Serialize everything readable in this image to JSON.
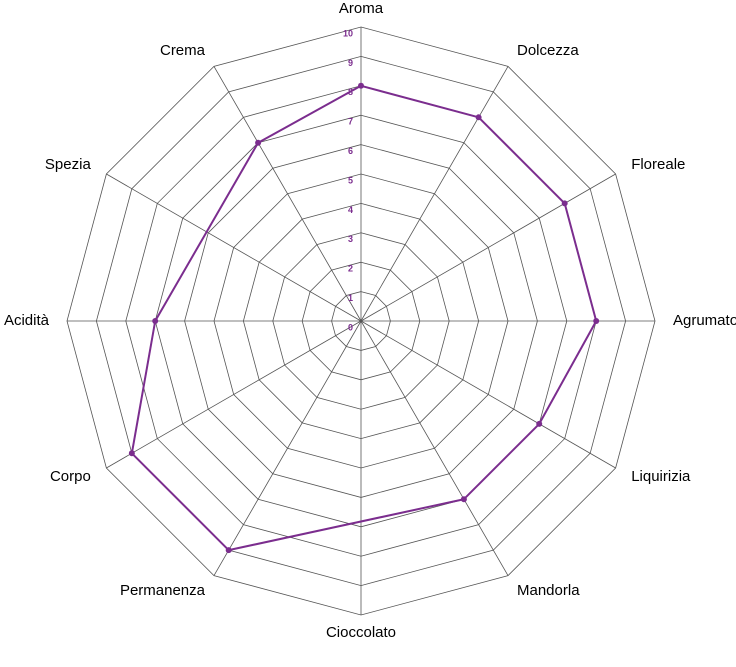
{
  "chart_data": {
    "type": "radar",
    "categories": [
      "Aroma",
      "Dolcezza",
      "Floreale",
      "Agrumato",
      "Liquirizia",
      "Mandorla",
      "Cioccolato",
      "Permanenza",
      "Corpo",
      "Acidità",
      "Spezia",
      "Crema"
    ],
    "values": [
      8,
      8,
      8,
      8,
      7,
      7,
      null,
      9,
      9,
      7,
      null,
      7
    ],
    "color": "#7b2d8e",
    "rlim": [
      0,
      10
    ],
    "rticks": [
      0,
      1,
      2,
      3,
      4,
      5,
      6,
      7,
      8,
      9,
      10
    ],
    "grid": true
  }
}
